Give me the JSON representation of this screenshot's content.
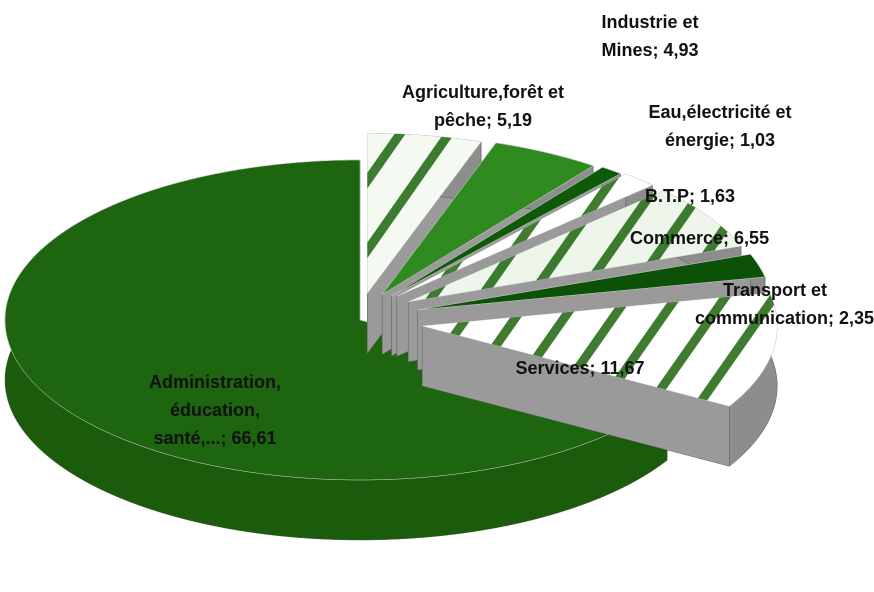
{
  "chart_data": {
    "type": "pie",
    "categories": [
      "Agriculture,forêt et pêche;",
      "Industrie et Mines;",
      "Eau,électricité et énergie;",
      "B.T.P;",
      "Commerce;",
      "Transport et communication;",
      "Services;",
      "Administration, éducation, santé,...;"
    ],
    "values": [
      5.19,
      4.93,
      1.03,
      1.63,
      6.55,
      2.35,
      11.67,
      66.61
    ],
    "value_labels": [
      "5,19",
      "4,93",
      "1,03",
      "1,63",
      "6,55",
      "2,35",
      "11,67",
      "66,61"
    ],
    "colors": [
      "#f4f9f2",
      "#2f8a1f",
      "#0f5a08",
      "#ffffff",
      "#eef6ec",
      "#0c5206",
      "#ffffff",
      "#1d650e"
    ],
    "exploded": true,
    "three_d": true
  }
}
